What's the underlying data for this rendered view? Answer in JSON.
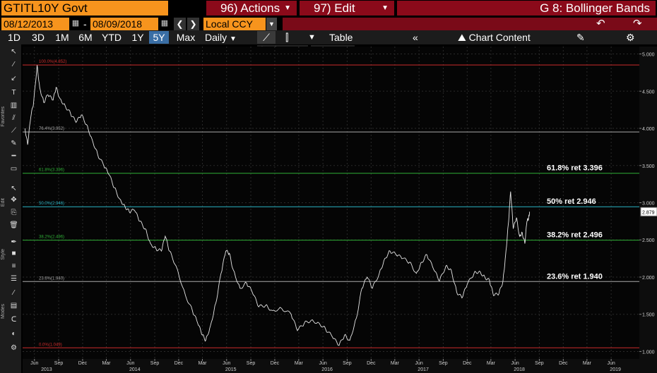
{
  "header": {
    "ticker": "GTITL10Y Govt",
    "actions_label": "96) Actions",
    "edit_label": "97) Edit",
    "function_title": "G 8: Bollinger Bands"
  },
  "range": {
    "start_date": "08/12/2013",
    "separator": "-",
    "end_date": "08/09/2018",
    "currency": "Local CCY"
  },
  "periods": [
    "1D",
    "3D",
    "1M",
    "6M",
    "YTD",
    "1Y",
    "5Y",
    "Max"
  ],
  "selected_period": "5Y",
  "toolbar": {
    "frequency": "Daily",
    "table_label": "Table",
    "chart_content_label": "Chart Content"
  },
  "chart_tools": {
    "track": "Track",
    "annotate": "Annotate",
    "news": "News",
    "zoom": "Zoom",
    "reset": "Reset"
  },
  "sidebar_labels": {
    "favorites": "Favorites",
    "edit": "Edit",
    "style": "Style",
    "modes": "Modes"
  },
  "chart_data": {
    "type": "line",
    "x_range": [
      "2013-05-01",
      "2019-09-30"
    ],
    "ylim": [
      0.9,
      5.1
    ],
    "y_ticks": [
      1.0,
      1.5,
      2.0,
      2.5,
      3.0,
      3.5,
      4.0,
      4.5,
      5.0
    ],
    "y_tick_labels": [
      "1.000",
      "1.500",
      "2.000",
      "2.500",
      "3.000",
      "3.500",
      "4.000",
      "4.500",
      "5.000"
    ],
    "x_month_labels": [
      {
        "date": "2013-06-15",
        "label": "Jun"
      },
      {
        "date": "2013-09-15",
        "label": "Sep"
      },
      {
        "date": "2013-12-15",
        "label": "Dec"
      },
      {
        "date": "2014-03-15",
        "label": "Mar"
      },
      {
        "date": "2014-06-15",
        "label": "Jun"
      },
      {
        "date": "2014-09-15",
        "label": "Sep"
      },
      {
        "date": "2014-12-15",
        "label": "Dec"
      },
      {
        "date": "2015-03-15",
        "label": "Mar"
      },
      {
        "date": "2015-06-15",
        "label": "Jun"
      },
      {
        "date": "2015-09-15",
        "label": "Sep"
      },
      {
        "date": "2015-12-15",
        "label": "Dec"
      },
      {
        "date": "2016-03-15",
        "label": "Mar"
      },
      {
        "date": "2016-06-15",
        "label": "Jun"
      },
      {
        "date": "2016-09-15",
        "label": "Sep"
      },
      {
        "date": "2016-12-15",
        "label": "Dec"
      },
      {
        "date": "2017-03-15",
        "label": "Mar"
      },
      {
        "date": "2017-06-15",
        "label": "Jun"
      },
      {
        "date": "2017-09-15",
        "label": "Sep"
      },
      {
        "date": "2017-12-15",
        "label": "Dec"
      },
      {
        "date": "2018-03-15",
        "label": "Mar"
      },
      {
        "date": "2018-06-15",
        "label": "Jun"
      },
      {
        "date": "2018-09-15",
        "label": "Sep"
      },
      {
        "date": "2018-12-15",
        "label": "Dec"
      },
      {
        "date": "2019-03-15",
        "label": "Mar"
      },
      {
        "date": "2019-06-15",
        "label": "Jun"
      }
    ],
    "x_year_labels": [
      {
        "date": "2013-07-31",
        "label": "2013"
      },
      {
        "date": "2014-07-01",
        "label": "2014"
      },
      {
        "date": "2015-07-01",
        "label": "2015"
      },
      {
        "date": "2016-07-01",
        "label": "2016"
      },
      {
        "date": "2017-07-01",
        "label": "2017"
      },
      {
        "date": "2018-07-01",
        "label": "2018"
      },
      {
        "date": "2019-07-01",
        "label": "2019"
      }
    ],
    "last_value_label": "2.879",
    "last_value": 2.879,
    "fib_levels": [
      {
        "label_left": "100.0%(4.852)",
        "value": 4.852,
        "color": "#cc2b2b",
        "label_right": ""
      },
      {
        "label_left": "76.4%(3.952)",
        "value": 3.952,
        "color": "#aaaaaa",
        "label_right": ""
      },
      {
        "label_left": "61.8%(3.396)",
        "value": 3.396,
        "color": "#2fae36",
        "label_right": "61.8% ret 3.396"
      },
      {
        "label_left": "50.0%(2.946)",
        "value": 2.946,
        "color": "#2ab3c4",
        "label_right": "50% ret 2.946"
      },
      {
        "label_left": "38.2%(2.496)",
        "value": 2.496,
        "color": "#2fae36",
        "label_right": "38.2% ret 2.496"
      },
      {
        "label_left": "23.6%(1.940)",
        "value": 1.94,
        "color": "#aaaaaa",
        "label_right": "23.6% ret 1.940"
      },
      {
        "label_left": "0.0%(1.049)",
        "value": 1.049,
        "color": "#cc2b2b",
        "label_right": ""
      }
    ],
    "series": [
      {
        "color": "#e6e6e6",
        "points": [
          [
            "2013-05-10",
            4.0
          ],
          [
            "2013-05-20",
            3.78
          ],
          [
            "2013-06-01",
            4.15
          ],
          [
            "2013-06-12",
            4.35
          ],
          [
            "2013-06-25",
            4.85
          ],
          [
            "2013-07-05",
            4.55
          ],
          [
            "2013-07-20",
            4.35
          ],
          [
            "2013-08-05",
            4.45
          ],
          [
            "2013-08-25",
            4.38
          ],
          [
            "2013-09-05",
            4.55
          ],
          [
            "2013-09-20",
            4.4
          ],
          [
            "2013-10-10",
            4.3
          ],
          [
            "2013-10-30",
            4.2
          ],
          [
            "2013-11-20",
            4.08
          ],
          [
            "2013-12-10",
            4.18
          ],
          [
            "2013-12-30",
            4.05
          ],
          [
            "2014-01-20",
            3.85
          ],
          [
            "2014-02-10",
            3.65
          ],
          [
            "2014-03-05",
            3.5
          ],
          [
            "2014-03-25",
            3.38
          ],
          [
            "2014-04-15",
            3.2
          ],
          [
            "2014-05-05",
            3.05
          ],
          [
            "2014-05-25",
            2.95
          ],
          [
            "2014-06-10",
            2.88
          ],
          [
            "2014-06-30",
            2.9
          ],
          [
            "2014-07-20",
            2.75
          ],
          [
            "2014-08-10",
            2.65
          ],
          [
            "2014-08-30",
            2.45
          ],
          [
            "2014-09-20",
            2.38
          ],
          [
            "2014-10-10",
            2.35
          ],
          [
            "2014-10-25",
            2.55
          ],
          [
            "2014-11-10",
            2.35
          ],
          [
            "2014-12-05",
            2.15
          ],
          [
            "2015-01-10",
            1.75
          ],
          [
            "2015-02-05",
            1.55
          ],
          [
            "2015-02-25",
            1.38
          ],
          [
            "2015-03-15",
            1.22
          ],
          [
            "2015-03-28",
            1.15
          ],
          [
            "2015-04-15",
            1.35
          ],
          [
            "2015-05-05",
            1.65
          ],
          [
            "2015-05-25",
            2.05
          ],
          [
            "2015-06-12",
            2.35
          ],
          [
            "2015-06-25",
            2.32
          ],
          [
            "2015-07-10",
            2.1
          ],
          [
            "2015-08-05",
            1.85
          ],
          [
            "2015-08-30",
            1.92
          ],
          [
            "2015-09-20",
            1.8
          ],
          [
            "2015-10-15",
            1.6
          ],
          [
            "2015-11-10",
            1.62
          ],
          [
            "2015-12-05",
            1.55
          ],
          [
            "2016-01-10",
            1.58
          ],
          [
            "2016-02-15",
            1.5
          ],
          [
            "2016-03-10",
            1.28
          ],
          [
            "2016-04-05",
            1.38
          ],
          [
            "2016-05-01",
            1.42
          ],
          [
            "2016-06-01",
            1.38
          ],
          [
            "2016-06-25",
            1.3
          ],
          [
            "2016-07-20",
            1.2
          ],
          [
            "2016-08-15",
            1.08
          ],
          [
            "2016-09-05",
            1.22
          ],
          [
            "2016-09-25",
            1.15
          ],
          [
            "2016-10-20",
            1.45
          ],
          [
            "2016-11-10",
            1.85
          ],
          [
            "2016-11-30",
            2.0
          ],
          [
            "2016-12-20",
            1.85
          ],
          [
            "2017-01-15",
            2.05
          ],
          [
            "2017-02-05",
            2.25
          ],
          [
            "2017-02-25",
            2.35
          ],
          [
            "2017-03-20",
            2.3
          ],
          [
            "2017-04-15",
            2.25
          ],
          [
            "2017-05-10",
            2.2
          ],
          [
            "2017-06-05",
            2.05
          ],
          [
            "2017-06-25",
            2.2
          ],
          [
            "2017-07-15",
            2.3
          ],
          [
            "2017-08-10",
            2.1
          ],
          [
            "2017-09-01",
            1.95
          ],
          [
            "2017-09-25",
            2.15
          ],
          [
            "2017-10-15",
            2.1
          ],
          [
            "2017-11-05",
            1.8
          ],
          [
            "2017-11-25",
            1.72
          ],
          [
            "2017-12-15",
            1.9
          ],
          [
            "2018-01-10",
            2.05
          ],
          [
            "2018-01-30",
            2.08
          ],
          [
            "2018-02-20",
            2.0
          ],
          [
            "2018-03-10",
            1.95
          ],
          [
            "2018-03-25",
            1.75
          ],
          [
            "2018-04-15",
            1.78
          ],
          [
            "2018-04-30",
            1.95
          ],
          [
            "2018-05-10",
            2.3
          ],
          [
            "2018-05-20",
            2.7
          ],
          [
            "2018-05-29",
            3.15
          ],
          [
            "2018-06-08",
            2.65
          ],
          [
            "2018-06-20",
            2.8
          ],
          [
            "2018-07-02",
            2.55
          ],
          [
            "2018-07-12",
            2.6
          ],
          [
            "2018-07-22",
            2.45
          ],
          [
            "2018-07-30",
            2.75
          ],
          [
            "2018-08-05",
            2.78
          ],
          [
            "2018-08-09",
            2.879
          ]
        ]
      }
    ]
  }
}
